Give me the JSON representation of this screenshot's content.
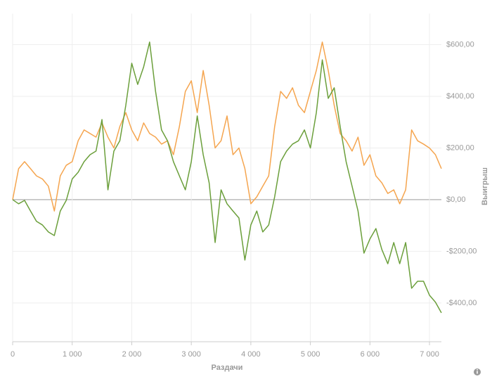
{
  "chart_data": {
    "type": "line",
    "x_label": "Раздачи",
    "y_label": "Выигрыш",
    "x": [
      0,
      100,
      200,
      300,
      400,
      500,
      600,
      700,
      800,
      900,
      1000,
      1100,
      1200,
      1300,
      1400,
      1500,
      1600,
      1700,
      1800,
      1900,
      2000,
      2100,
      2200,
      2300,
      2400,
      2500,
      2600,
      2700,
      2800,
      2900,
      3000,
      3100,
      3200,
      3300,
      3400,
      3500,
      3600,
      3700,
      3800,
      3900,
      4000,
      4100,
      4200,
      4300,
      4400,
      4500,
      4600,
      4700,
      4800,
      4900,
      5000,
      5100,
      5200,
      5300,
      5400,
      5500,
      5600,
      5700,
      5800,
      5900,
      6000,
      6100,
      6200,
      6300,
      6400,
      6500,
      6600,
      6700,
      6800,
      6900,
      7000,
      7100,
      7200
    ],
    "series": [
      {
        "color": "#f5a54f",
        "values": [
          0,
          120,
          147,
          120,
          92,
          80,
          52,
          -44,
          92,
          133,
          147,
          228,
          270,
          256,
          242,
          297,
          242,
          200,
          283,
          337,
          270,
          228,
          297,
          256,
          242,
          215,
          228,
          174,
          283,
          419,
          460,
          337,
          500,
          365,
          200,
          228,
          324,
          174,
          200,
          120,
          -16,
          11,
          52,
          92,
          283,
          419,
          392,
          433,
          365,
          337,
          419,
          500,
          610,
          500,
          365,
          256,
          228,
          188,
          242,
          133,
          174,
          92,
          65,
          24,
          38,
          -16,
          38,
          270,
          228,
          215,
          200,
          174,
          120
        ]
      },
      {
        "color": "#6b9f3b",
        "values": [
          0,
          -16,
          -3,
          -44,
          -84,
          -98,
          -125,
          -139,
          -44,
          -3,
          80,
          106,
          147,
          174,
          188,
          310,
          38,
          188,
          228,
          365,
          528,
          446,
          514,
          610,
          419,
          270,
          228,
          147,
          92,
          38,
          147,
          324,
          174,
          65,
          -166,
          38,
          -16,
          -44,
          -71,
          -234,
          -98,
          -44,
          -125,
          -98,
          11,
          147,
          188,
          215,
          228,
          270,
          200,
          337,
          541,
          392,
          433,
          283,
          147,
          52,
          -44,
          -207,
          -152,
          -112,
          -193,
          -248,
          -166,
          -248,
          -166,
          -343,
          -316,
          -316,
          -370,
          -397,
          -438
        ]
      }
    ],
    "xlim": [
      0,
      7200
    ],
    "ylim": [
      -550,
      720
    ],
    "xticks": [
      0,
      {
        "value": 1000,
        "label": "1 000"
      },
      {
        "value": 2000,
        "label": "2 000"
      },
      {
        "value": 3000,
        "label": "3 000"
      },
      {
        "value": 4000,
        "label": "4 000"
      },
      {
        "value": 5000,
        "label": "5 000"
      },
      {
        "value": 6000,
        "label": "6 000"
      },
      {
        "value": 7000,
        "label": "7 000"
      }
    ],
    "yticks": [
      {
        "value": -400,
        "label": "-$400,00"
      },
      {
        "value": -200,
        "label": "-$200,00"
      },
      {
        "value": 0,
        "label": "$0,00"
      },
      {
        "value": 200,
        "label": "$200,00"
      },
      {
        "value": 400,
        "label": "$400,00"
      },
      {
        "value": 600,
        "label": "$600,00"
      }
    ],
    "grid": true
  }
}
